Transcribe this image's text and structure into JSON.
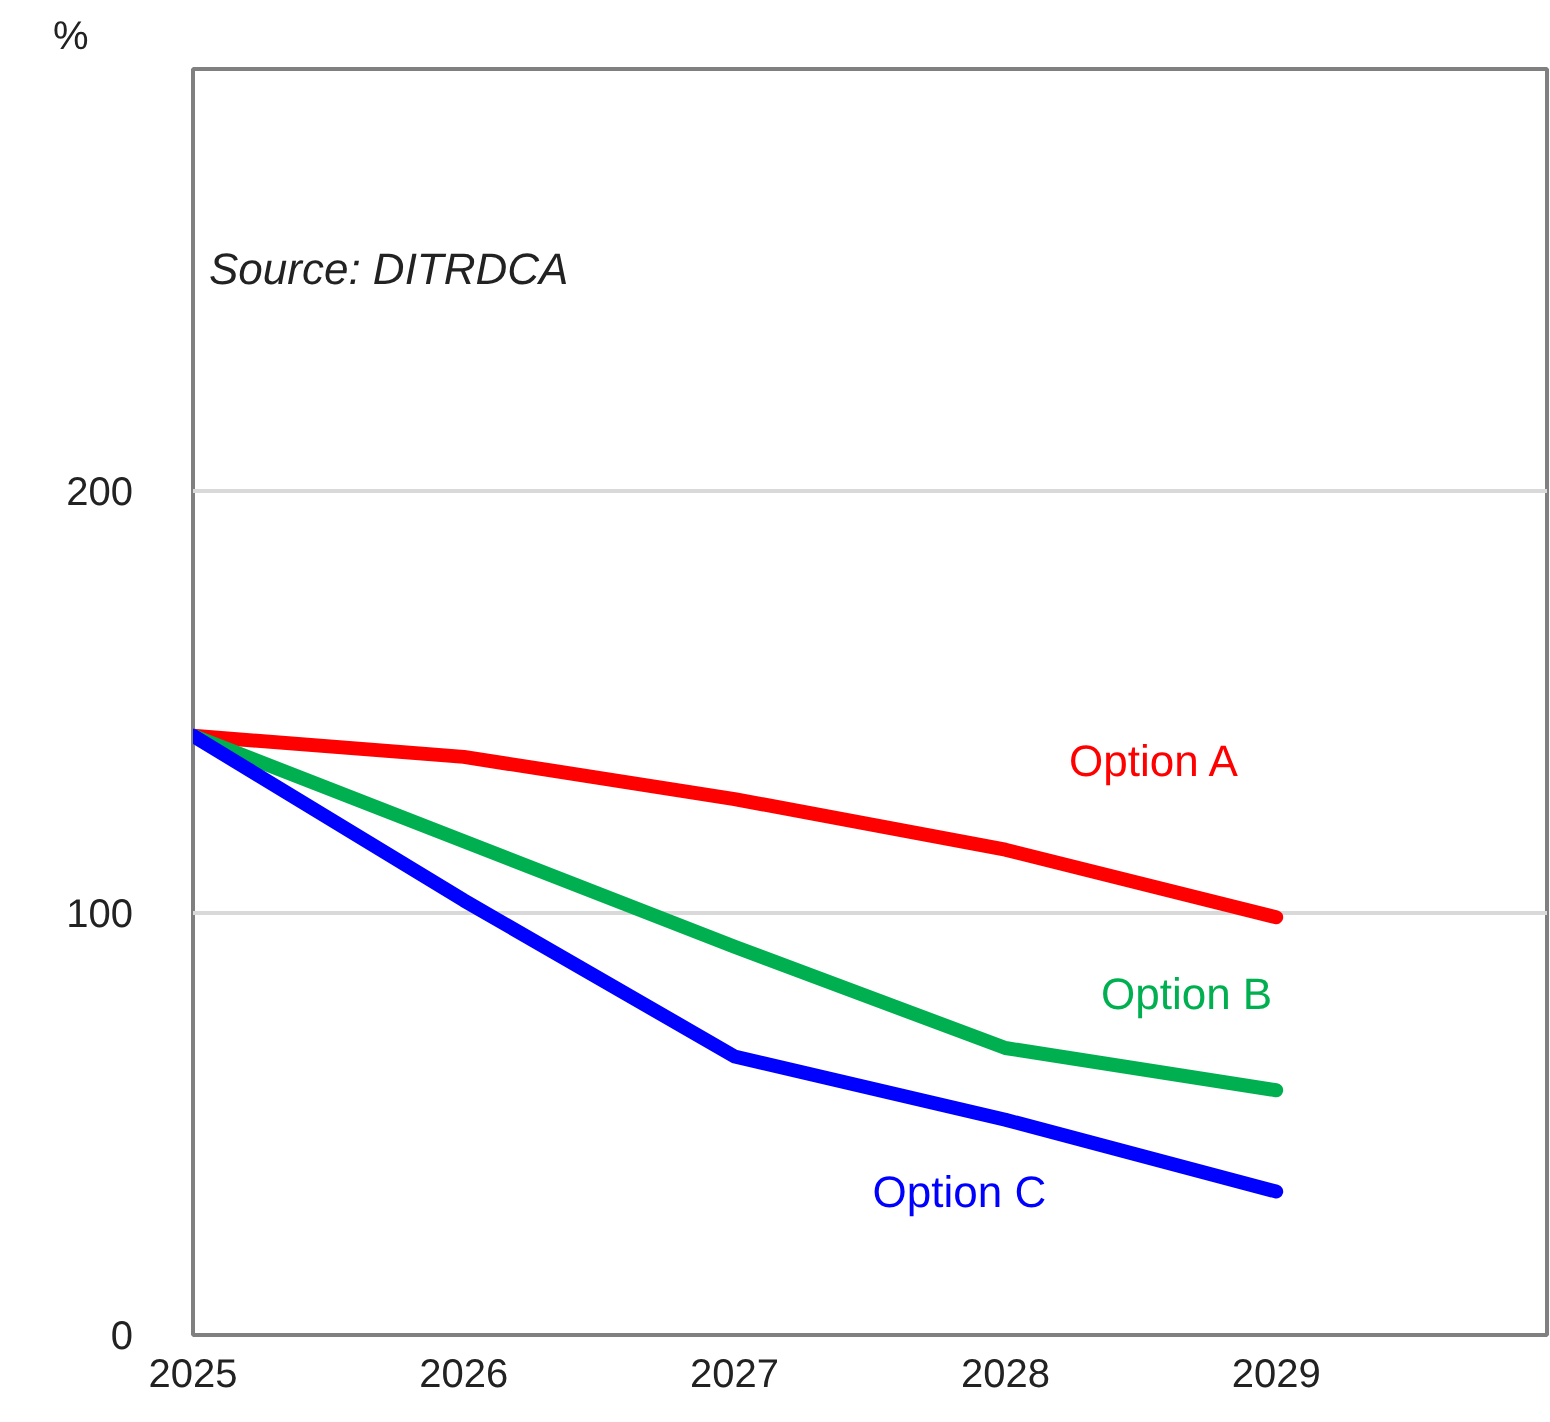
{
  "chart_data": {
    "type": "line",
    "ylabel": "%",
    "annotations": [
      "Source: DITRDCA"
    ],
    "x": [
      2025,
      2026,
      2027,
      2028,
      2029
    ],
    "xlim": [
      2025,
      2030
    ],
    "xticks": [
      2025,
      2026,
      2027,
      2028,
      2029
    ],
    "ylim": [
      0,
      300
    ],
    "yticks": [
      0,
      100,
      200
    ],
    "grid": "y",
    "marker": "none",
    "line_style": "solid",
    "series": [
      {
        "name": "Option A",
        "color": "#ff0000",
        "values": [
          142,
          137,
          127,
          115,
          99
        ]
      },
      {
        "name": "Option B",
        "color": "#00b050",
        "values": [
          142,
          117,
          92,
          68,
          58
        ]
      },
      {
        "name": "Option C",
        "color": "#0000ff",
        "values": [
          142,
          103,
          66,
          51,
          34
        ]
      }
    ]
  }
}
